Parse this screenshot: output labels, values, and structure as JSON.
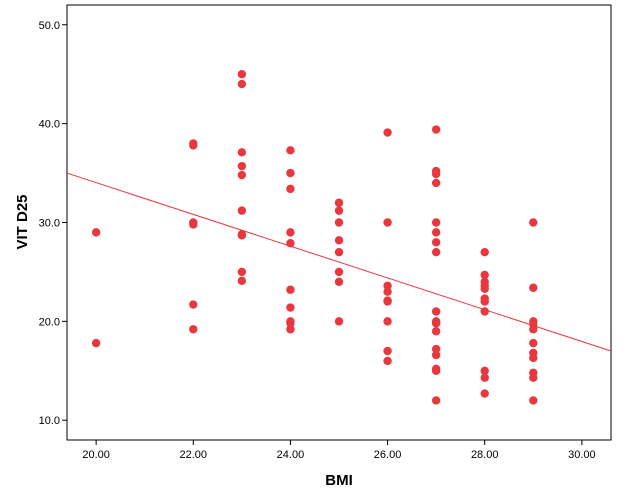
{
  "chart_data": {
    "type": "scatter",
    "xlabel": "BMI",
    "ylabel": "VIT D25",
    "xlim": [
      19.4,
      30.6
    ],
    "ylim": [
      8.0,
      52.0
    ],
    "x_ticks": [
      20,
      22,
      24,
      26,
      28,
      30
    ],
    "x_tick_labels": [
      "20.00",
      "22.00",
      "24.00",
      "26.00",
      "28.00",
      "30.00"
    ],
    "y_ticks": [
      10,
      20,
      30,
      40,
      50
    ],
    "y_tick_labels": [
      "10.0",
      "20.0",
      "30.0",
      "40.0",
      "50.0"
    ],
    "grid": false,
    "legend": "none",
    "marker_color": "#e8373d",
    "fit_line_color": "#e8373d",
    "fit_line": {
      "x": [
        19.4,
        30.6
      ],
      "y": [
        35.0,
        17.0
      ]
    },
    "points": [
      [
        20,
        29.0
      ],
      [
        20,
        17.8
      ],
      [
        22,
        38.0
      ],
      [
        22,
        37.8
      ],
      [
        22,
        30.0
      ],
      [
        22,
        29.8
      ],
      [
        22,
        21.7
      ],
      [
        22,
        19.2
      ],
      [
        23,
        45.0
      ],
      [
        23,
        44.0
      ],
      [
        23,
        37.1
      ],
      [
        23,
        35.7
      ],
      [
        23,
        34.8
      ],
      [
        23,
        31.2
      ],
      [
        23,
        28.8
      ],
      [
        23,
        28.7
      ],
      [
        23,
        25.0
      ],
      [
        23,
        24.1
      ],
      [
        24,
        37.3
      ],
      [
        24,
        35.0
      ],
      [
        24,
        33.4
      ],
      [
        24,
        29.0
      ],
      [
        24,
        27.9
      ],
      [
        24,
        23.2
      ],
      [
        24,
        21.4
      ],
      [
        24,
        20.0
      ],
      [
        24,
        19.8
      ],
      [
        24,
        19.2
      ],
      [
        25,
        32.0
      ],
      [
        25,
        31.2
      ],
      [
        25,
        30.0
      ],
      [
        25,
        28.2
      ],
      [
        25,
        27.0
      ],
      [
        25,
        25.0
      ],
      [
        25,
        24.0
      ],
      [
        25,
        20.0
      ],
      [
        26,
        39.1
      ],
      [
        26,
        30.0
      ],
      [
        26,
        23.6
      ],
      [
        26,
        23.0
      ],
      [
        26,
        22.1
      ],
      [
        26,
        22.0
      ],
      [
        26,
        20.0
      ],
      [
        26,
        17.0
      ],
      [
        26,
        16.0
      ],
      [
        27,
        39.4
      ],
      [
        27,
        35.2
      ],
      [
        27,
        34.9
      ],
      [
        27,
        34.0
      ],
      [
        27,
        30.0
      ],
      [
        27,
        29.0
      ],
      [
        27,
        28.0
      ],
      [
        27,
        27.0
      ],
      [
        27,
        21.0
      ],
      [
        27,
        20.0
      ],
      [
        27,
        19.8
      ],
      [
        27,
        19.0
      ],
      [
        27,
        17.2
      ],
      [
        27,
        16.6
      ],
      [
        27,
        15.2
      ],
      [
        27,
        15.0
      ],
      [
        27,
        12.0
      ],
      [
        28,
        27.0
      ],
      [
        28,
        24.7
      ],
      [
        28,
        24.0
      ],
      [
        28,
        23.6
      ],
      [
        28,
        23.3
      ],
      [
        28,
        22.3
      ],
      [
        28,
        22.0
      ],
      [
        28,
        21.0
      ],
      [
        28,
        15.0
      ],
      [
        28,
        14.3
      ],
      [
        28,
        12.7
      ],
      [
        29,
        30.0
      ],
      [
        29,
        23.4
      ],
      [
        29,
        20.0
      ],
      [
        29,
        19.7
      ],
      [
        29,
        19.2
      ],
      [
        29,
        17.8
      ],
      [
        29,
        16.8
      ],
      [
        29,
        16.3
      ],
      [
        29,
        14.8
      ],
      [
        29,
        14.3
      ],
      [
        29,
        12.0
      ]
    ]
  }
}
